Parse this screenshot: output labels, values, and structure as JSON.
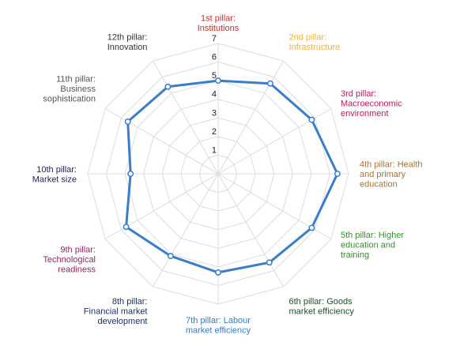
{
  "chart_data": {
    "type": "radar",
    "title": "",
    "scale": {
      "min": 0,
      "max": 7,
      "ticks": [
        "1",
        "2",
        "3",
        "4",
        "5",
        "6",
        "7"
      ]
    },
    "grid": true,
    "axes": [
      {
        "lines": [
          "1st pillar:",
          "Institutions"
        ],
        "color": "#d62728"
      },
      {
        "lines": [
          "2nd pillar:",
          "Infrastructure"
        ],
        "color": "#f2b33d"
      },
      {
        "lines": [
          "3rd pillar:",
          "Macroeconomic",
          "environment"
        ],
        "color": "#c2185b"
      },
      {
        "lines": [
          "4th pillar: Health",
          "and primary",
          "education"
        ],
        "color": "#a8733a"
      },
      {
        "lines": [
          "5th pillar: Higher",
          "education and",
          "training"
        ],
        "color": "#3d8b37"
      },
      {
        "lines": [
          "6th pillar: Goods",
          "market efficiency"
        ],
        "color": "#1b4f2a"
      },
      {
        "lines": [
          "7th pillar: Labour",
          "market efficiency"
        ],
        "color": "#3a7bbf"
      },
      {
        "lines": [
          "8th pillar:",
          "Financial market",
          "development"
        ],
        "color": "#1a2f5c"
      },
      {
        "lines": [
          "9th pillar:",
          "Technological",
          "readiness"
        ],
        "color": "#8b2a6b"
      },
      {
        "lines": [
          "10th pillar:",
          "Market size"
        ],
        "color": "#27235e"
      },
      {
        "lines": [
          "11th pillar:",
          "Business",
          "sophistication"
        ],
        "color": "#555555"
      },
      {
        "lines": [
          "12th pillar:",
          "Innovation"
        ],
        "color": "#333333"
      }
    ],
    "series": [
      {
        "values": [
          5.0,
          5.6,
          5.8,
          6.4,
          5.8,
          5.5,
          5.3,
          5.1,
          5.7,
          4.7,
          5.6,
          5.4
        ],
        "color": "#3a7dc9"
      }
    ]
  }
}
